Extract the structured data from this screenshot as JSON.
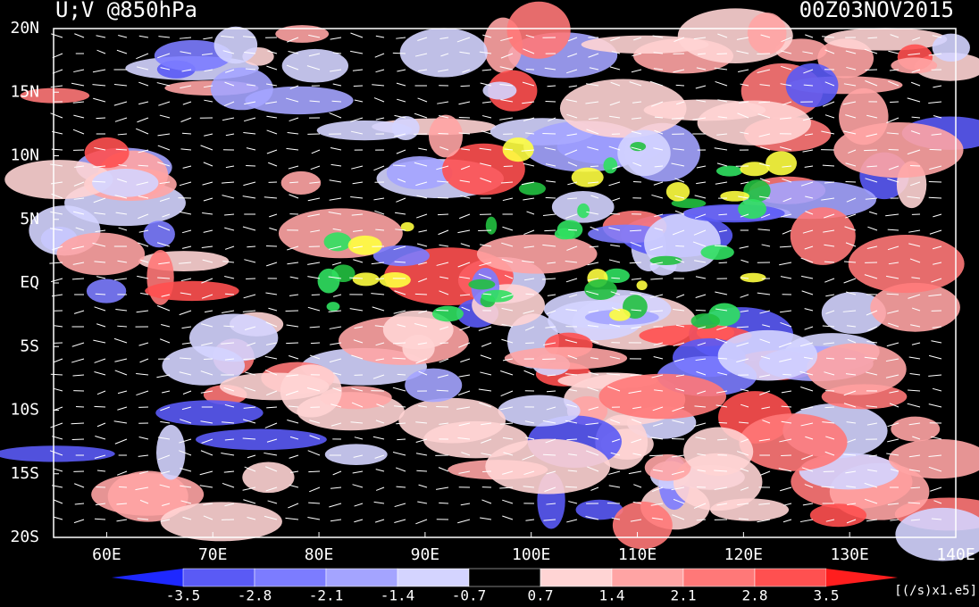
{
  "header": {
    "title": "U;V @850hPa",
    "time": "00Z03NOV2015"
  },
  "map": {
    "lon_range": [
      55,
      140
    ],
    "lat_range": [
      -20,
      20
    ],
    "lat_ticks": [
      {
        "value": 20,
        "label": "20N"
      },
      {
        "value": 15,
        "label": "15N"
      },
      {
        "value": 10,
        "label": "10N"
      },
      {
        "value": 5,
        "label": "5N"
      },
      {
        "value": 0,
        "label": "EQ"
      },
      {
        "value": -5,
        "label": "5S"
      },
      {
        "value": -10,
        "label": "10S"
      },
      {
        "value": -15,
        "label": "15S"
      },
      {
        "value": -20,
        "label": "20S"
      }
    ],
    "lon_ticks": [
      {
        "value": 60,
        "label": "60E"
      },
      {
        "value": 70,
        "label": "70E"
      },
      {
        "value": 80,
        "label": "80E"
      },
      {
        "value": 90,
        "label": "90E"
      },
      {
        "value": 100,
        "label": "100E"
      },
      {
        "value": 110,
        "label": "110E"
      },
      {
        "value": 120,
        "label": "120E"
      },
      {
        "value": 130,
        "label": "130E"
      },
      {
        "value": 140,
        "label": "140E"
      }
    ]
  },
  "colorbar": {
    "levels": [
      -3.5,
      -2.8,
      -2.1,
      -1.4,
      -0.7,
      0.7,
      1.4,
      2.1,
      2.8,
      3.5
    ],
    "colors": [
      "#1e28ff",
      "#5a5af5",
      "#7c7cff",
      "#a4a4ff",
      "#d4d4ff",
      "#000000",
      "#ffd4d4",
      "#ffa4a4",
      "#ff7878",
      "#ff5050",
      "#ff1e1e"
    ],
    "unit": "[(/s)x1.e5]"
  }
}
